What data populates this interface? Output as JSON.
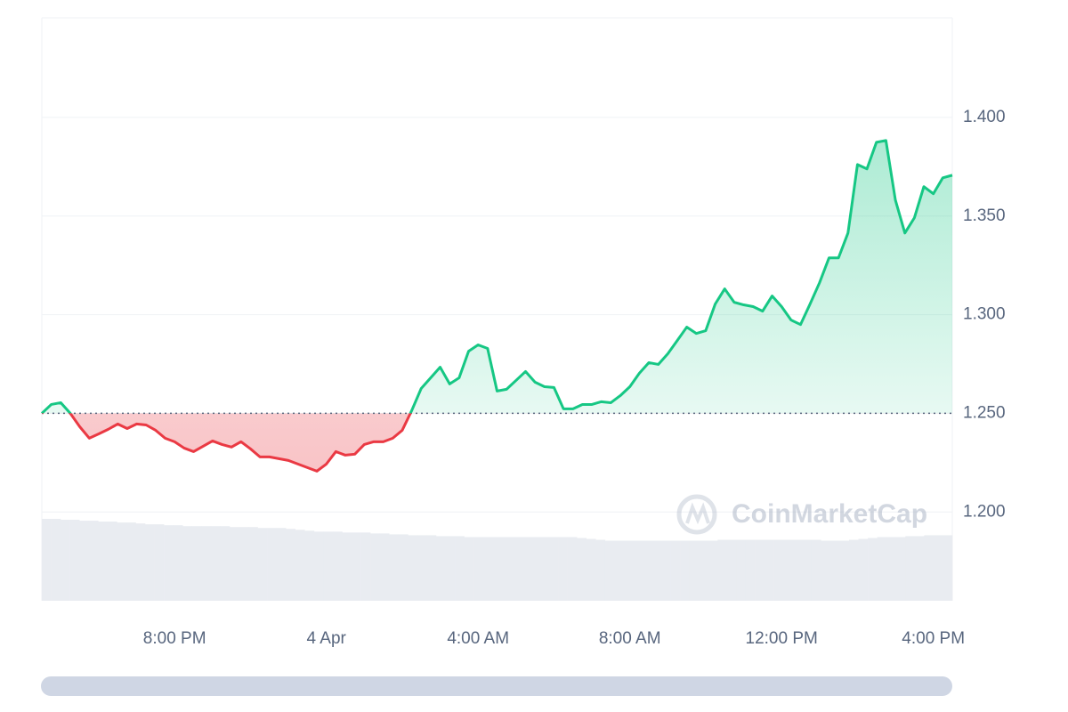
{
  "chart_data": {
    "type": "line",
    "categories": [
      null,
      null,
      null,
      null,
      null,
      null,
      null,
      null,
      null,
      null,
      null,
      null,
      null,
      null,
      "8:00 PM",
      null,
      null,
      null,
      null,
      null,
      null,
      null,
      null,
      null,
      null,
      null,
      null,
      null,
      null,
      null,
      "4 Apr",
      null,
      null,
      null,
      null,
      null,
      null,
      null,
      null,
      null,
      null,
      null,
      null,
      null,
      null,
      null,
      "4:00 AM",
      null,
      null,
      null,
      null,
      null,
      null,
      null,
      null,
      null,
      null,
      null,
      null,
      null,
      null,
      null,
      "8:00 AM",
      null,
      null,
      null,
      null,
      null,
      null,
      null,
      null,
      null,
      null,
      null,
      null,
      null,
      null,
      null,
      "12:00 PM",
      null,
      null,
      null,
      null,
      null,
      null,
      null,
      null,
      null,
      null,
      null,
      null,
      null,
      null,
      null,
      "4:00 PM",
      null,
      null
    ],
    "values": [
      1.25,
      1.2545,
      1.2554,
      1.25,
      1.2432,
      1.2374,
      1.2396,
      1.2419,
      1.2446,
      1.2423,
      1.2446,
      1.2441,
      1.2414,
      1.2374,
      1.2356,
      1.2324,
      1.2306,
      1.2333,
      1.236,
      1.2342,
      1.2329,
      1.2356,
      1.232,
      1.2279,
      1.2279,
      1.227,
      1.2261,
      1.2243,
      1.2225,
      1.2207,
      1.2243,
      1.2306,
      1.2288,
      1.2293,
      1.2342,
      1.2356,
      1.2356,
      1.2374,
      1.2414,
      1.2514,
      1.2626,
      1.268,
      1.2734,
      1.2649,
      1.268,
      1.2815,
      1.2847,
      1.2829,
      1.2613,
      1.2622,
      1.2667,
      1.2712,
      1.2658,
      1.2635,
      1.2631,
      1.2523,
      1.2523,
      1.2545,
      1.2545,
      1.2559,
      1.2554,
      1.259,
      1.2635,
      1.2703,
      1.2757,
      1.2748,
      1.2802,
      1.2869,
      1.2937,
      1.2905,
      1.2919,
      1.3054,
      1.3131,
      1.3063,
      1.305,
      1.3041,
      1.3018,
      1.3095,
      1.3041,
      1.2973,
      1.295,
      1.3054,
      1.3162,
      1.3288,
      1.3288,
      1.3414,
      1.3761,
      1.3739,
      1.3874,
      1.3883,
      1.3581,
      1.3414,
      1.3491,
      1.3649,
      1.3613,
      1.3694,
      1.3707
    ],
    "volume": [
      90,
      90,
      89,
      89,
      88,
      88,
      87,
      87,
      86,
      86,
      85,
      84,
      84,
      83,
      83,
      82,
      82,
      82,
      82,
      82,
      81,
      81,
      81,
      80,
      80,
      80,
      79,
      78,
      77,
      76,
      76,
      76,
      75,
      75,
      75,
      74,
      74,
      73,
      73,
      72,
      72,
      72,
      71,
      71,
      71,
      70,
      70,
      70,
      70,
      70,
      70,
      70,
      70,
      70,
      70,
      70,
      70,
      69,
      68,
      67,
      66,
      66,
      66,
      66,
      66,
      66,
      66,
      66,
      66,
      66,
      66,
      66,
      67,
      67,
      67,
      67,
      67,
      67,
      67,
      67,
      67,
      67,
      67,
      66,
      66,
      66,
      67,
      68,
      69,
      70,
      70,
      70,
      71,
      71,
      72,
      72,
      72
    ],
    "baseline": 1.25,
    "up_color": "#16c784",
    "down_color": "#ea3943",
    "volume_color": "#e9ecf1",
    "ylim": [
      1.155,
      1.4505
    ],
    "yticks": [
      {
        "value": 1.2,
        "label": "1.200"
      },
      {
        "value": 1.25,
        "label": "1.250"
      },
      {
        "value": 1.3,
        "label": "1.300"
      },
      {
        "value": 1.35,
        "label": "1.350"
      },
      {
        "value": 1.4,
        "label": "1.400"
      }
    ],
    "grid": true,
    "watermark": "CoinMarketCap"
  }
}
